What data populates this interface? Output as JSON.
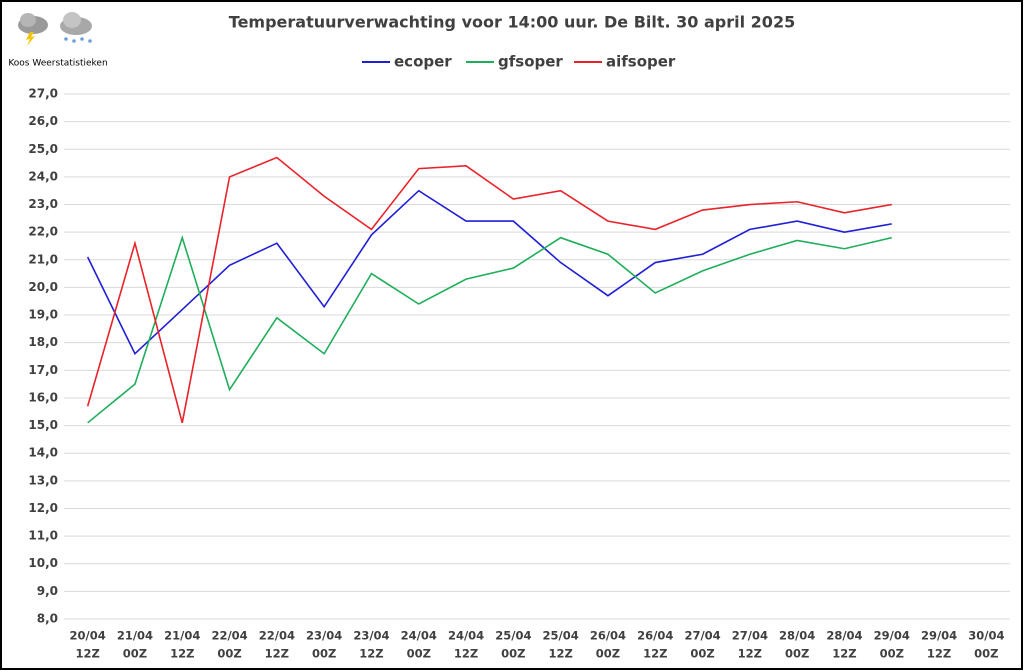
{
  "chart_data": {
    "type": "line",
    "title": "Temperatuurverwachting voor 14:00 uur. De Bilt. 30 april 2025",
    "credit": "Koos Weerstatistieken",
    "categories": [
      [
        "20/04",
        "12Z"
      ],
      [
        "21/04",
        "00Z"
      ],
      [
        "21/04",
        "12Z"
      ],
      [
        "22/04",
        "00Z"
      ],
      [
        "22/04",
        "12Z"
      ],
      [
        "23/04",
        "00Z"
      ],
      [
        "23/04",
        "12Z"
      ],
      [
        "24/04",
        "00Z"
      ],
      [
        "24/04",
        "12Z"
      ],
      [
        "25/04",
        "00Z"
      ],
      [
        "25/04",
        "12Z"
      ],
      [
        "26/04",
        "00Z"
      ],
      [
        "26/04",
        "12Z"
      ],
      [
        "27/04",
        "00Z"
      ],
      [
        "27/04",
        "12Z"
      ],
      [
        "28/04",
        "00Z"
      ],
      [
        "28/04",
        "12Z"
      ],
      [
        "29/04",
        "00Z"
      ],
      [
        "29/04",
        "12Z"
      ],
      [
        "30/04",
        "00Z"
      ]
    ],
    "series": [
      {
        "name": "ecoper",
        "color": "#1f1fd6",
        "values": [
          21.1,
          17.6,
          19.2,
          20.8,
          21.6,
          19.3,
          21.9,
          23.5,
          22.4,
          22.4,
          20.9,
          19.7,
          20.9,
          21.2,
          22.1,
          22.4,
          22.0,
          22.3,
          null,
          null
        ]
      },
      {
        "name": "gfsoper",
        "color": "#1fae5a",
        "values": [
          15.1,
          16.5,
          21.8,
          16.3,
          18.9,
          17.6,
          20.5,
          19.4,
          20.3,
          20.7,
          21.8,
          21.2,
          19.8,
          20.6,
          21.2,
          21.7,
          21.4,
          21.8,
          null,
          null
        ]
      },
      {
        "name": "aifsoper",
        "color": "#e8232a",
        "values": [
          15.7,
          21.6,
          15.1,
          24.0,
          24.7,
          23.3,
          22.1,
          24.3,
          24.4,
          23.2,
          23.5,
          22.4,
          22.1,
          22.8,
          23.0,
          23.1,
          22.7,
          23.0,
          null,
          null
        ]
      }
    ],
    "ylim": [
      8,
      27
    ],
    "yticks": [
      {
        "value": 8,
        "label": "8,0"
      },
      {
        "value": 9,
        "label": "9,0"
      },
      {
        "value": 10,
        "label": "10,0"
      },
      {
        "value": 11,
        "label": "11,0"
      },
      {
        "value": 12,
        "label": "12,0"
      },
      {
        "value": 13,
        "label": "13,0"
      },
      {
        "value": 14,
        "label": "14,0"
      },
      {
        "value": 15,
        "label": "15,0"
      },
      {
        "value": 16,
        "label": "16,0"
      },
      {
        "value": 17,
        "label": "17,0"
      },
      {
        "value": 18,
        "label": "18,0"
      },
      {
        "value": 19,
        "label": "19,0"
      },
      {
        "value": 20,
        "label": "20,0"
      },
      {
        "value": 21,
        "label": "21,0"
      },
      {
        "value": 22,
        "label": "22,0"
      },
      {
        "value": 23,
        "label": "23,0"
      },
      {
        "value": 24,
        "label": "24,0"
      },
      {
        "value": 25,
        "label": "25,0"
      },
      {
        "value": 26,
        "label": "26,0"
      },
      {
        "value": 27,
        "label": "27,0"
      }
    ],
    "grid": true,
    "legend": "top"
  }
}
